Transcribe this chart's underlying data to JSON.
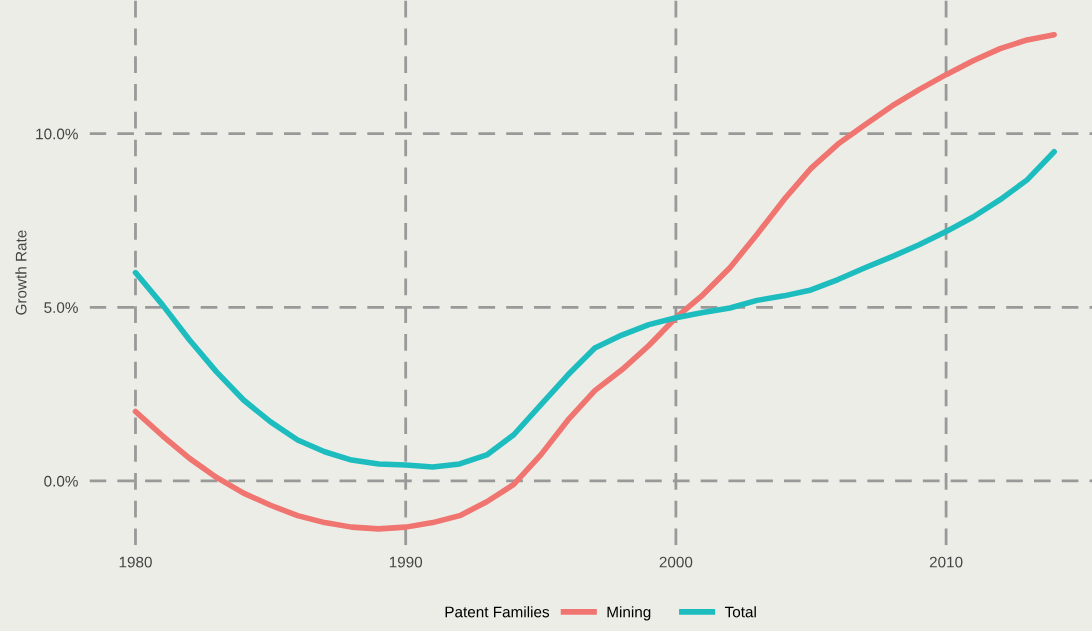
{
  "chart_data": {
    "type": "line",
    "xlabel": null,
    "ylabel": "Growth Rate",
    "legend_title": "Patent Families",
    "x": [
      1980,
      1981,
      1982,
      1983,
      1984,
      1985,
      1986,
      1987,
      1988,
      1989,
      1990,
      1991,
      1992,
      1993,
      1994,
      1995,
      1996,
      1997,
      1998,
      1999,
      2000,
      2001,
      2002,
      2003,
      2004,
      2005,
      2006,
      2007,
      2008,
      2009,
      2010,
      2011,
      2012,
      2013,
      2014
    ],
    "series": [
      {
        "name": "Mining",
        "color": "#f07470",
        "values": [
          2.0,
          1.3,
          0.65,
          0.1,
          -0.35,
          -0.7,
          -1.0,
          -1.2,
          -1.33,
          -1.38,
          -1.33,
          -1.2,
          -1.0,
          -0.6,
          -0.1,
          0.75,
          1.75,
          2.6,
          3.2,
          3.9,
          4.7,
          5.36,
          6.14,
          7.1,
          8.1,
          9.0,
          9.7,
          10.26,
          10.8,
          11.27,
          11.7,
          12.1,
          12.45,
          12.7,
          12.85
        ]
      },
      {
        "name": "Total",
        "color": "#1dbdbf",
        "values": [
          6.0,
          5.07,
          4.06,
          3.14,
          2.33,
          1.7,
          1.18,
          0.84,
          0.6,
          0.49,
          0.46,
          0.4,
          0.49,
          0.75,
          1.33,
          2.19,
          3.05,
          3.83,
          4.2,
          4.5,
          4.7,
          4.85,
          4.98,
          5.2,
          5.33,
          5.5,
          5.8,
          6.14,
          6.46,
          6.8,
          7.18,
          7.6,
          8.1,
          8.67,
          9.48
        ]
      }
    ],
    "xlim": [
      1978.3,
      2015.4
    ],
    "ylim": [
      -1.85,
      13.85
    ],
    "xticks": [
      1980,
      1990,
      2000,
      2010
    ],
    "yticks": [
      {
        "value": 0,
        "label": "0.0%"
      },
      {
        "value": 5,
        "label": "5.0%"
      },
      {
        "value": 10,
        "label": "10.0%"
      }
    ],
    "grid": true,
    "line_style": "solid",
    "marker": "none",
    "legend": "bottom"
  }
}
